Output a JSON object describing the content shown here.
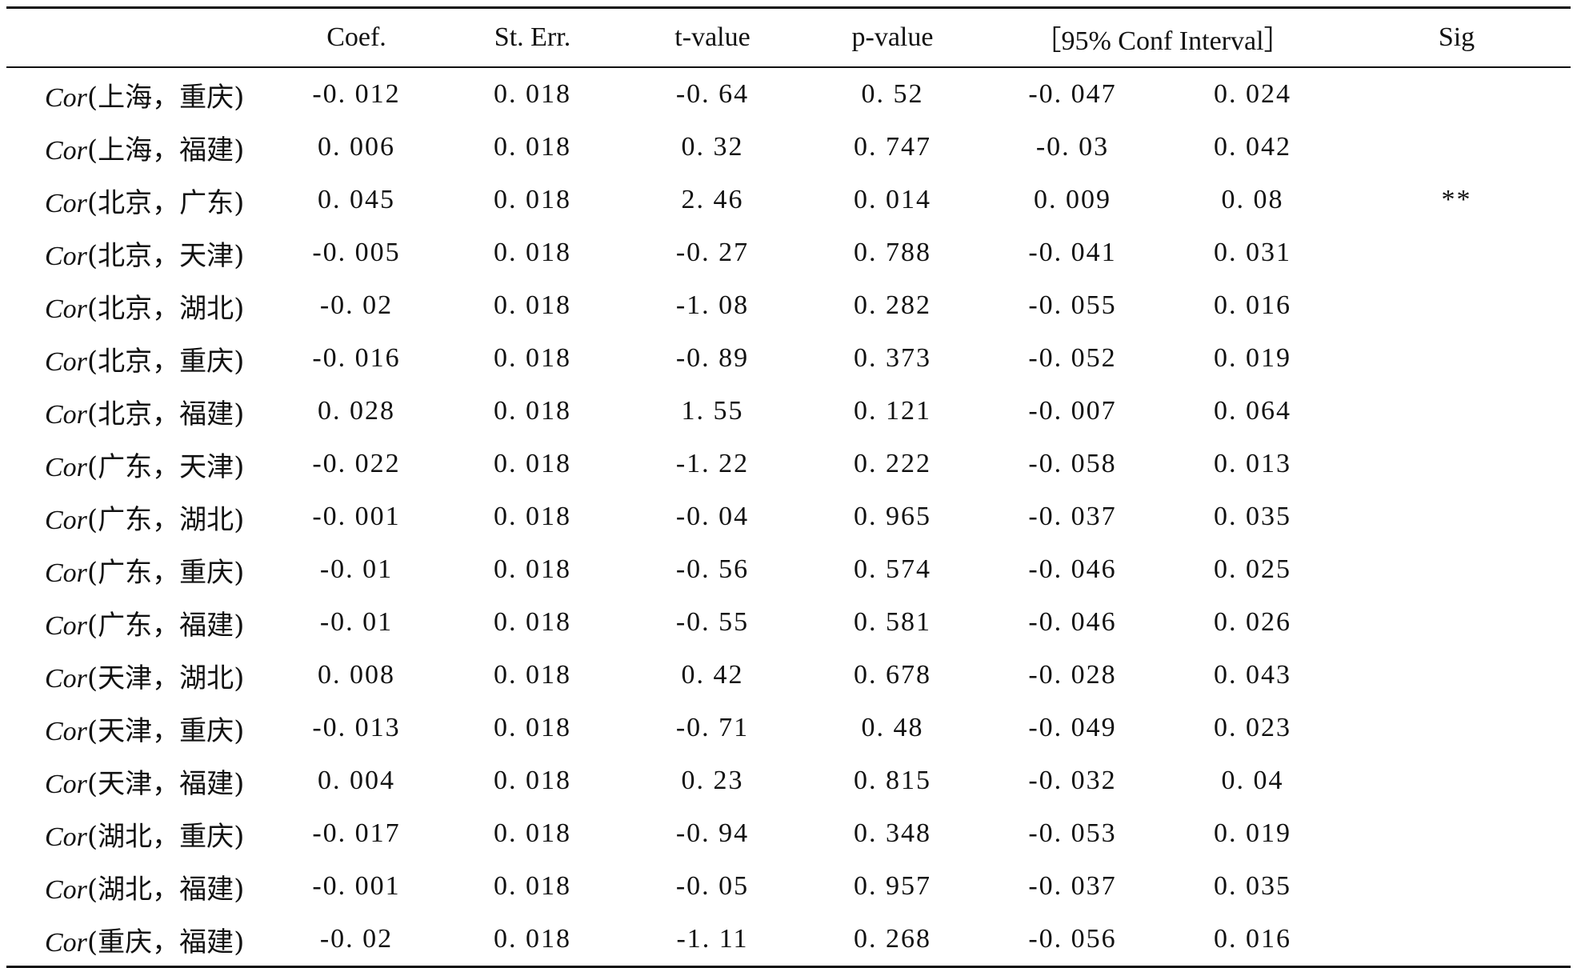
{
  "header": {
    "coef": "Coef.",
    "st_err": "St. Err.",
    "t_value": "t-value",
    "p_value": "p-value",
    "ci": "［95% Conf Interval］",
    "sig": "Sig"
  },
  "rows": [
    {
      "cor": "Cor",
      "pair": "(上海，重庆)",
      "coef": "-0. 012",
      "se": "0. 018",
      "t": "-0. 64",
      "p": "0. 52",
      "lo": "-0. 047",
      "hi": "0. 024",
      "sig": ""
    },
    {
      "cor": "Cor",
      "pair": "(上海，福建)",
      "coef": "0. 006",
      "se": "0. 018",
      "t": "0. 32",
      "p": "0. 747",
      "lo": "-0. 03",
      "hi": "0. 042",
      "sig": ""
    },
    {
      "cor": "Cor",
      "pair": "(北京，广东)",
      "coef": "0. 045",
      "se": "0. 018",
      "t": "2. 46",
      "p": "0. 014",
      "lo": "0. 009",
      "hi": "0. 08",
      "sig": "**"
    },
    {
      "cor": "Cor",
      "pair": "(北京，天津)",
      "coef": "-0. 005",
      "se": "0. 018",
      "t": "-0. 27",
      "p": "0. 788",
      "lo": "-0. 041",
      "hi": "0. 031",
      "sig": ""
    },
    {
      "cor": "Cor",
      "pair": "(北京，湖北)",
      "coef": "-0. 02",
      "se": "0. 018",
      "t": "-1. 08",
      "p": "0. 282",
      "lo": "-0. 055",
      "hi": "0. 016",
      "sig": ""
    },
    {
      "cor": "Cor",
      "pair": "(北京，重庆)",
      "coef": "-0. 016",
      "se": "0. 018",
      "t": "-0. 89",
      "p": "0. 373",
      "lo": "-0. 052",
      "hi": "0. 019",
      "sig": ""
    },
    {
      "cor": "Cor",
      "pair": "(北京，福建)",
      "coef": "0. 028",
      "se": "0. 018",
      "t": "1. 55",
      "p": "0. 121",
      "lo": "-0. 007",
      "hi": "0. 064",
      "sig": ""
    },
    {
      "cor": "Cor",
      "pair": "(广东，天津)",
      "coef": "-0. 022",
      "se": "0. 018",
      "t": "-1. 22",
      "p": "0. 222",
      "lo": "-0. 058",
      "hi": "0. 013",
      "sig": ""
    },
    {
      "cor": "Cor",
      "pair": "(广东，湖北)",
      "coef": "-0. 001",
      "se": "0. 018",
      "t": "-0. 04",
      "p": "0. 965",
      "lo": "-0. 037",
      "hi": "0. 035",
      "sig": ""
    },
    {
      "cor": "Cor",
      "pair": "(广东，重庆)",
      "coef": "-0. 01",
      "se": "0. 018",
      "t": "-0. 56",
      "p": "0. 574",
      "lo": "-0. 046",
      "hi": "0. 025",
      "sig": ""
    },
    {
      "cor": "Cor",
      "pair": "(广东，福建)",
      "coef": "-0. 01",
      "se": "0. 018",
      "t": "-0. 55",
      "p": "0. 581",
      "lo": "-0. 046",
      "hi": "0. 026",
      "sig": ""
    },
    {
      "cor": "Cor",
      "pair": "(天津，湖北)",
      "coef": "0. 008",
      "se": "0. 018",
      "t": "0. 42",
      "p": "0. 678",
      "lo": "-0. 028",
      "hi": "0. 043",
      "sig": ""
    },
    {
      "cor": "Cor",
      "pair": "(天津，重庆)",
      "coef": "-0. 013",
      "se": "0. 018",
      "t": "-0. 71",
      "p": "0. 48",
      "lo": "-0. 049",
      "hi": "0. 023",
      "sig": ""
    },
    {
      "cor": "Cor",
      "pair": "(天津，福建)",
      "coef": "0. 004",
      "se": "0. 018",
      "t": "0. 23",
      "p": "0. 815",
      "lo": "-0. 032",
      "hi": "0. 04",
      "sig": ""
    },
    {
      "cor": "Cor",
      "pair": "(湖北，重庆)",
      "coef": "-0. 017",
      "se": "0. 018",
      "t": "-0. 94",
      "p": "0. 348",
      "lo": "-0. 053",
      "hi": "0. 019",
      "sig": ""
    },
    {
      "cor": "Cor",
      "pair": "(湖北，福建)",
      "coef": "-0. 001",
      "se": "0. 018",
      "t": "-0. 05",
      "p": "0. 957",
      "lo": "-0. 037",
      "hi": "0. 035",
      "sig": ""
    },
    {
      "cor": "Cor",
      "pair": "(重庆，福建)",
      "coef": "-0. 02",
      "se": "0. 018",
      "t": "-1. 11",
      "p": "0. 268",
      "lo": "-0. 056",
      "hi": "0. 016",
      "sig": ""
    }
  ]
}
